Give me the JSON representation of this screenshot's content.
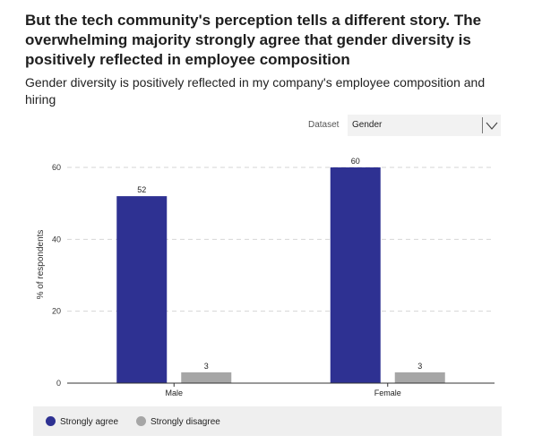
{
  "header": {
    "title": "But the tech community's perception tells a different story. The overwhelming majority strongly agree that gender diversity is positively reflected in employee composition",
    "subtitle": "Gender diversity is positively reflected in my company's employee composition and hiring"
  },
  "controls": {
    "dataset_label": "Dataset",
    "dataset_value": "Gender",
    "chevron_icon": "chevron-down-icon"
  },
  "colors": {
    "strongly_agree": "#2e3192",
    "strongly_disagree": "#a6a6a6",
    "grid": "#d6d6d6"
  },
  "chart_data": {
    "type": "bar",
    "categories": [
      "Male",
      "Female"
    ],
    "series": [
      {
        "name": "Strongly agree",
        "values": [
          52,
          60
        ]
      },
      {
        "name": "Strongly disagree",
        "values": [
          3,
          3
        ]
      }
    ],
    "ylabel": "% of respondents",
    "xlabel": "",
    "ylim": [
      0,
      60
    ],
    "yticks": [
      0,
      20,
      40,
      60
    ],
    "grid": true,
    "legend_position": "bottom"
  }
}
